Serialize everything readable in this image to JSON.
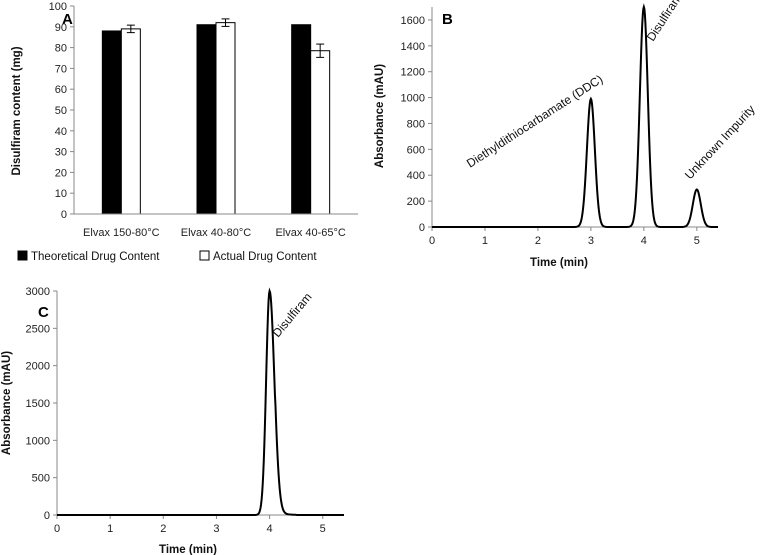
{
  "chart_data": [
    {
      "panel": "A",
      "type": "bar",
      "categories": [
        "Elvax 150-80°C",
        "Elvax 40-80°C",
        "Elvax 40-65°C"
      ],
      "series": [
        {
          "name": "Theoretical Drug Content",
          "values": [
            88,
            91,
            91
          ],
          "error": [
            0,
            0,
            0
          ],
          "color": "#000000"
        },
        {
          "name": "Actual Drug Content",
          "values": [
            89,
            92,
            78.5
          ],
          "error": [
            1.8,
            1.8,
            3.2
          ],
          "color": "#ffffff"
        }
      ],
      "ylabel": "Disulfiram content (mg)",
      "xlabel": "",
      "ylim": [
        0,
        100
      ],
      "yticks": [
        0,
        10,
        20,
        30,
        40,
        50,
        60,
        70,
        80,
        90,
        100
      ],
      "legend": "bottom"
    },
    {
      "panel": "B",
      "type": "line",
      "xlabel": "Time (min)",
      "ylabel": "Absorbance (mAU)",
      "xlim": [
        0,
        5.4
      ],
      "ylim": [
        0,
        1700
      ],
      "xticks": [
        0,
        1,
        2,
        3,
        4,
        5
      ],
      "yticks": [
        0,
        200,
        400,
        600,
        800,
        1000,
        1200,
        1400,
        1600
      ],
      "peaks": [
        {
          "x": 3.0,
          "y": 990,
          "label": "Diethyldithiocarbamate (DDC)"
        },
        {
          "x": 4.0,
          "y": 1700,
          "label": "Disulfiram"
        },
        {
          "x": 5.0,
          "y": 290,
          "label": "Unknown Impurity"
        }
      ]
    },
    {
      "panel": "C",
      "type": "line",
      "xlabel": "Time (min)",
      "ylabel": "Absorbance (mAU)",
      "xlim": [
        0,
        5.4
      ],
      "ylim": [
        0,
        3000
      ],
      "xticks": [
        0,
        1,
        2,
        3,
        4,
        5
      ],
      "yticks": [
        0,
        500,
        1000,
        1500,
        2000,
        2500,
        3000
      ],
      "peaks": [
        {
          "x": 4.0,
          "y": 3000,
          "label": "Disulfiram"
        }
      ]
    }
  ]
}
